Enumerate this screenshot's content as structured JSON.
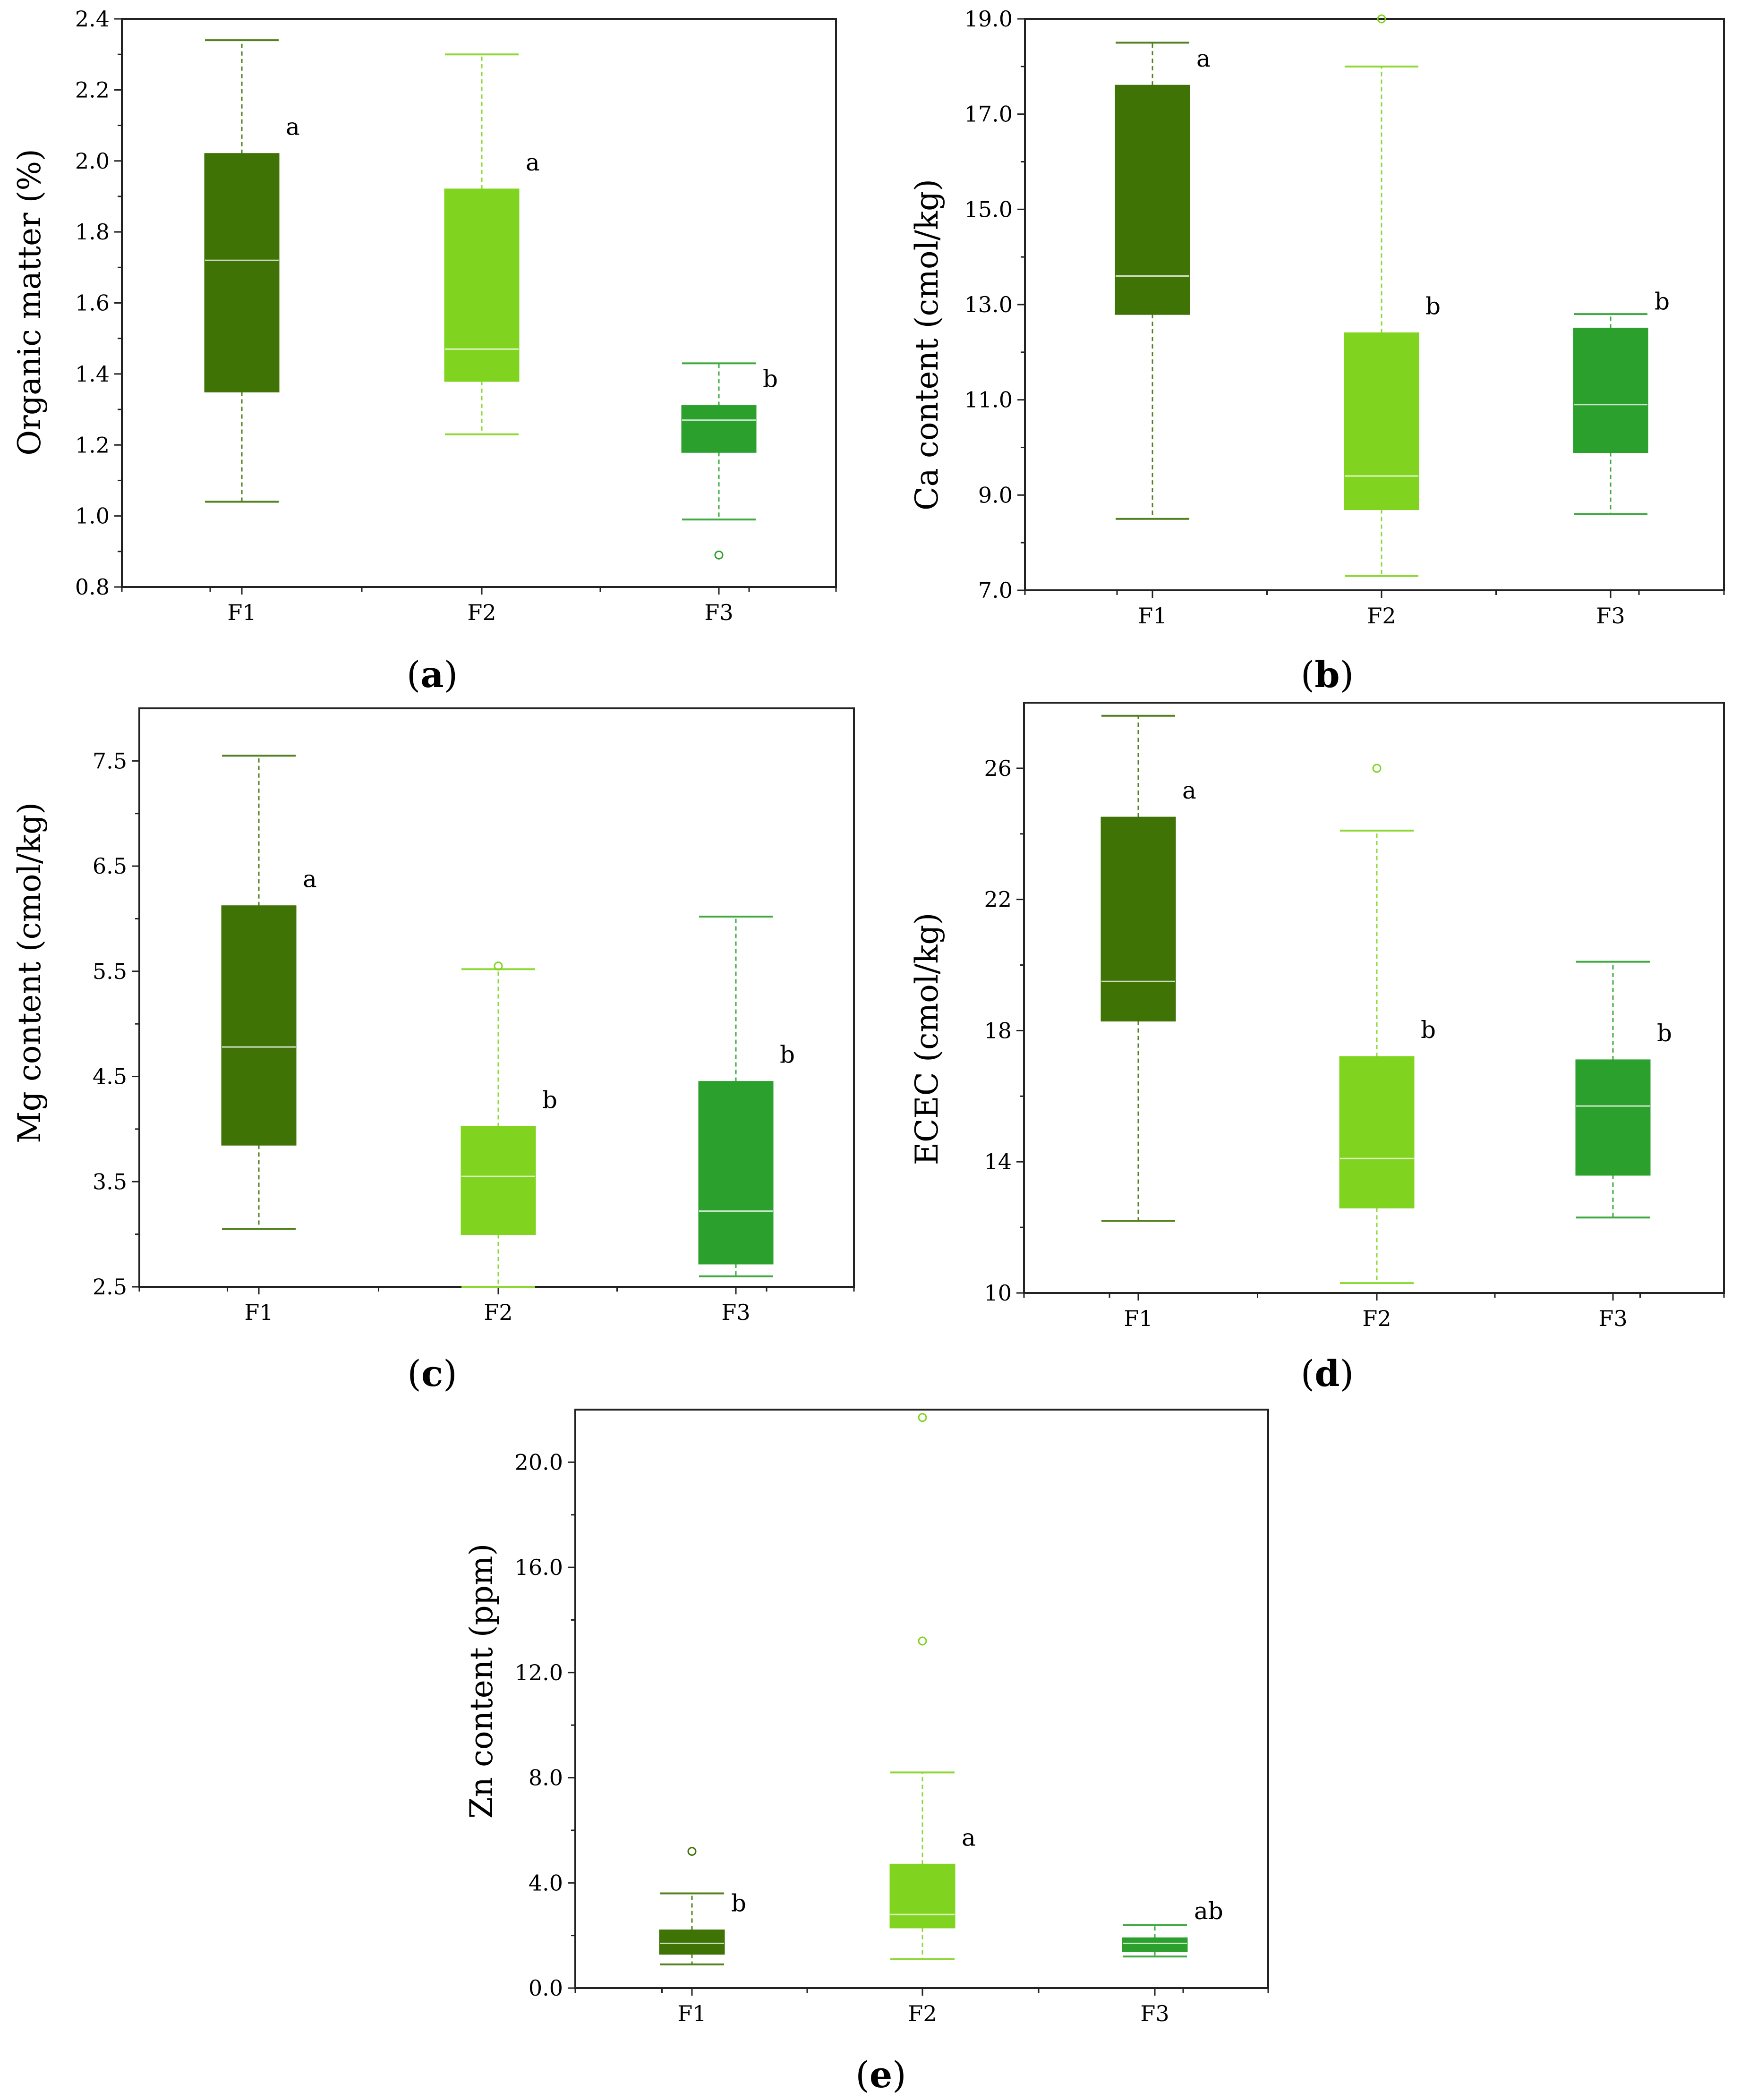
{
  "colors": {
    "F1": "#3f7306",
    "F2": "#80d41f",
    "F3": "#2ba02d"
  },
  "chart_data": [
    {
      "id": "a",
      "type": "boxplot",
      "caption": "a",
      "ylabel": "Organic matter (%)",
      "ylim": [
        0.8,
        2.4
      ],
      "yticks": [
        "0.8",
        "1.0",
        "1.2",
        "1.4",
        "1.6",
        "1.8",
        "2.0",
        "2.2",
        "2.4"
      ],
      "categories": [
        "F1",
        "F2",
        "F3"
      ],
      "boxes": [
        {
          "name": "F1",
          "whisker_low": 1.04,
          "q1": 1.35,
          "median": 1.72,
          "q3": 2.02,
          "whisker_high": 2.34,
          "outliers": [],
          "letter": "a"
        },
        {
          "name": "F2",
          "whisker_low": 1.23,
          "q1": 1.38,
          "median": 1.47,
          "q3": 1.92,
          "whisker_high": 2.3,
          "outliers": [],
          "letter": "a"
        },
        {
          "name": "F3",
          "whisker_low": 0.99,
          "q1": 1.18,
          "median": 1.27,
          "q3": 1.31,
          "whisker_high": 1.43,
          "outliers": [
            0.89
          ],
          "letter": "b"
        }
      ]
    },
    {
      "id": "b",
      "type": "boxplot",
      "caption": "b",
      "ylabel": "Ca content (cmol/kg)",
      "ylim": [
        7.0,
        19.0
      ],
      "yticks": [
        "7.0",
        "9.0",
        "11.0",
        "13.0",
        "15.0",
        "17.0",
        "19.0"
      ],
      "categories": [
        "F1",
        "F2",
        "F3"
      ],
      "boxes": [
        {
          "name": "F1",
          "whisker_low": 8.5,
          "q1": 12.8,
          "median": 13.6,
          "q3": 17.6,
          "whisker_high": 18.5,
          "outliers": [],
          "letter": "a"
        },
        {
          "name": "F2",
          "whisker_low": 7.3,
          "q1": 8.7,
          "median": 9.4,
          "q3": 12.4,
          "whisker_high": 18.0,
          "outliers": [
            19.0
          ],
          "letter": "b"
        },
        {
          "name": "F3",
          "whisker_low": 8.6,
          "q1": 9.9,
          "median": 10.9,
          "q3": 12.5,
          "whisker_high": 12.8,
          "outliers": [],
          "letter": "b"
        }
      ]
    },
    {
      "id": "c",
      "type": "boxplot",
      "caption": "c",
      "ylabel": "Mg content (cmol/kg)",
      "ylim": [
        2.5,
        8.0
      ],
      "yticks": [
        "2.5",
        "3.5",
        "4.5",
        "5.5",
        "6.5",
        "7.5"
      ],
      "categories": [
        "F1",
        "F2",
        "F3"
      ],
      "boxes": [
        {
          "name": "F1",
          "whisker_low": 3.05,
          "q1": 3.85,
          "median": 4.78,
          "q3": 6.12,
          "whisker_high": 7.55,
          "outliers": [],
          "letter": "a"
        },
        {
          "name": "F2",
          "whisker_low": 2.5,
          "q1": 3.0,
          "median": 3.55,
          "q3": 4.02,
          "whisker_high": 5.52,
          "outliers": [
            5.55
          ],
          "letter": "b"
        },
        {
          "name": "F3",
          "whisker_low": 2.6,
          "q1": 2.72,
          "median": 3.22,
          "q3": 4.45,
          "whisker_high": 6.02,
          "outliers": [],
          "letter": "b"
        }
      ]
    },
    {
      "id": "d",
      "type": "boxplot",
      "caption": "d",
      "ylabel": "ECEC (cmol/kg)",
      "ylim": [
        10,
        28
      ],
      "yticks": [
        "10",
        "14",
        "18",
        "22",
        "26"
      ],
      "categories": [
        "F1",
        "F2",
        "F3"
      ],
      "boxes": [
        {
          "name": "F1",
          "whisker_low": 12.2,
          "q1": 18.3,
          "median": 19.5,
          "q3": 24.5,
          "whisker_high": 27.6,
          "outliers": [],
          "letter": "a"
        },
        {
          "name": "F2",
          "whisker_low": 10.3,
          "q1": 12.6,
          "median": 14.1,
          "q3": 17.2,
          "whisker_high": 24.1,
          "outliers": [
            26.0
          ],
          "letter": "b"
        },
        {
          "name": "F3",
          "whisker_low": 12.3,
          "q1": 13.6,
          "median": 15.7,
          "q3": 17.1,
          "whisker_high": 20.1,
          "outliers": [],
          "letter": "b"
        }
      ]
    },
    {
      "id": "e",
      "type": "boxplot",
      "caption": "e",
      "ylabel": "Zn content (ppm)",
      "ylim": [
        0.0,
        22.0
      ],
      "yticks": [
        "0.0",
        "4.0",
        "8.0",
        "12.0",
        "16.0",
        "20.0"
      ],
      "categories": [
        "F1",
        "F2",
        "F3"
      ],
      "boxes": [
        {
          "name": "F1",
          "whisker_low": 0.9,
          "q1": 1.3,
          "median": 1.7,
          "q3": 2.2,
          "whisker_high": 3.6,
          "outliers": [
            5.2
          ],
          "letter": "b"
        },
        {
          "name": "F2",
          "whisker_low": 1.1,
          "q1": 2.3,
          "median": 2.8,
          "q3": 4.7,
          "whisker_high": 8.2,
          "outliers": [
            13.2,
            21.7
          ],
          "letter": "a"
        },
        {
          "name": "F3",
          "whisker_low": 1.2,
          "q1": 1.4,
          "median": 1.7,
          "q3": 1.9,
          "whisker_high": 2.4,
          "outliers": [],
          "letter": "ab"
        }
      ]
    }
  ]
}
